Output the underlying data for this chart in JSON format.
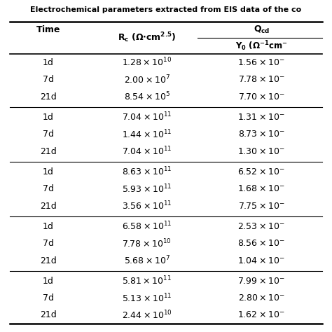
{
  "title": "Electrochemical parameters extracted from EIS data of the co",
  "background_color": "#ffffff",
  "text_color": "#000000",
  "line_color": "#000000",
  "font_size_title": 8,
  "font_size_header": 9,
  "font_size_data": 9,
  "groups": [
    {
      "rows": [
        [
          "1d",
          "1.28",
          "10",
          "1.56",
          "-"
        ],
        [
          "7d",
          "2.00",
          "7",
          "7.78",
          "-"
        ],
        [
          "21d",
          "8.54",
          "5",
          "7.70",
          "-"
        ]
      ]
    },
    {
      "rows": [
        [
          "1d",
          "7.04",
          "11",
          "1.31",
          "-"
        ],
        [
          "7d",
          "1.44",
          "11",
          "8.73",
          "-"
        ],
        [
          "21d",
          "7.04",
          "11",
          "1.30",
          "-"
        ]
      ]
    },
    {
      "rows": [
        [
          "1d",
          "8.63",
          "11",
          "6.52",
          "-"
        ],
        [
          "7d",
          "5.93",
          "11",
          "1.68",
          "-"
        ],
        [
          "21d",
          "3.56",
          "11",
          "7.75",
          "-"
        ]
      ]
    },
    {
      "rows": [
        [
          "1d",
          "6.58",
          "11",
          "2.53",
          "-"
        ],
        [
          "7d",
          "7.78",
          "10",
          "8.56",
          "-"
        ],
        [
          "21d",
          "5.68",
          "7",
          "1.04",
          "-"
        ]
      ]
    },
    {
      "rows": [
        [
          "1d",
          "5.81",
          "11",
          "7.99",
          "-"
        ],
        [
          "7d",
          "5.13",
          "11",
          "2.80",
          "-"
        ],
        [
          "21d",
          "2.44",
          "10",
          "1.62",
          "-"
        ]
      ]
    }
  ]
}
